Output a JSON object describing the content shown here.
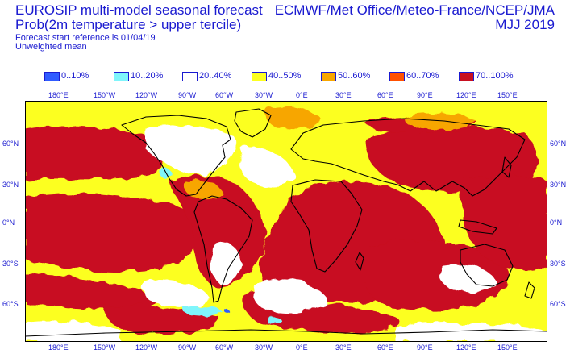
{
  "header": {
    "title_line1": "EUROSIP multi-model seasonal forecast",
    "title_line2": "Prob(2m temperature > upper tercile)",
    "subtitle_line1": "Forecast start reference is 01/04/19",
    "subtitle_line2": "Unweighted mean",
    "source": "ECMWF/Met Office/Meteo-France/NCEP/JMA",
    "period": "MJJ 2019"
  },
  "legend": [
    {
      "label": "0..10%",
      "color": "#2f5bff"
    },
    {
      "label": "10..20%",
      "color": "#7ff5fb"
    },
    {
      "label": "20..40%",
      "color": "#ffffff"
    },
    {
      "label": "40..50%",
      "color": "#fcff20"
    },
    {
      "label": "50..60%",
      "color": "#f7a600"
    },
    {
      "label": "60..70%",
      "color": "#ff5000"
    },
    {
      "label": "70..100%",
      "color": "#c81020"
    }
  ],
  "axes": {
    "top_lon_labels": [
      "180°E",
      "150°W",
      "120°W",
      "90°W",
      "60°W",
      "30°W",
      "0°E",
      "30°E",
      "60°E",
      "90°E",
      "120°E",
      "150°E"
    ],
    "bottom_lon_labels": [
      "180°E",
      "150°W",
      "120°W",
      "90°W",
      "60°W",
      "30°W",
      "0°E",
      "30°E",
      "60°E",
      "90°E",
      "120°E",
      "150°E"
    ],
    "left_lat_labels": [
      "60°N",
      "30°N",
      "0°N",
      "30°S",
      "60°S"
    ],
    "right_lat_labels": [
      "60°N",
      "30°N",
      "0°N",
      "30°S",
      "60°S"
    ]
  },
  "colors": {
    "text": "#1a1ad0",
    "coast": "#000000"
  }
}
